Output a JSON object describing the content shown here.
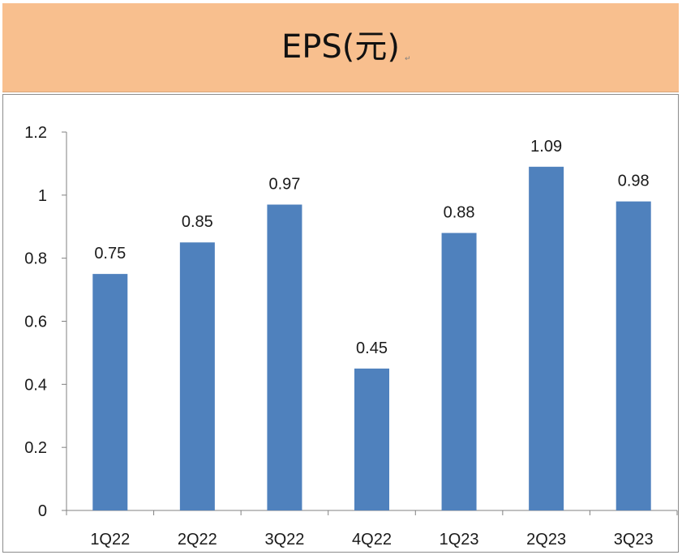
{
  "header": {
    "title": "EPS(元)",
    "return_mark": "↵"
  },
  "chart_data": {
    "type": "bar",
    "title": "EPS(元)",
    "categories": [
      "1Q22",
      "2Q22",
      "3Q22",
      "4Q22",
      "1Q23",
      "2Q23",
      "3Q23"
    ],
    "values": [
      0.75,
      0.85,
      0.97,
      0.45,
      0.88,
      1.09,
      0.98
    ],
    "data_labels": [
      "0.75",
      "0.85",
      "0.97",
      "0.45",
      "0.88",
      "1.09",
      "0.98"
    ],
    "y_ticks": [
      "0",
      "0.2",
      "0.4",
      "0.6",
      "0.8",
      "1",
      "1.2"
    ],
    "ylim": [
      0,
      1.2
    ],
    "xlabel": "",
    "ylabel": "",
    "grid": false,
    "legend": "none",
    "bar_color": "#4f81bd",
    "band_color": "#f8bf8e"
  }
}
